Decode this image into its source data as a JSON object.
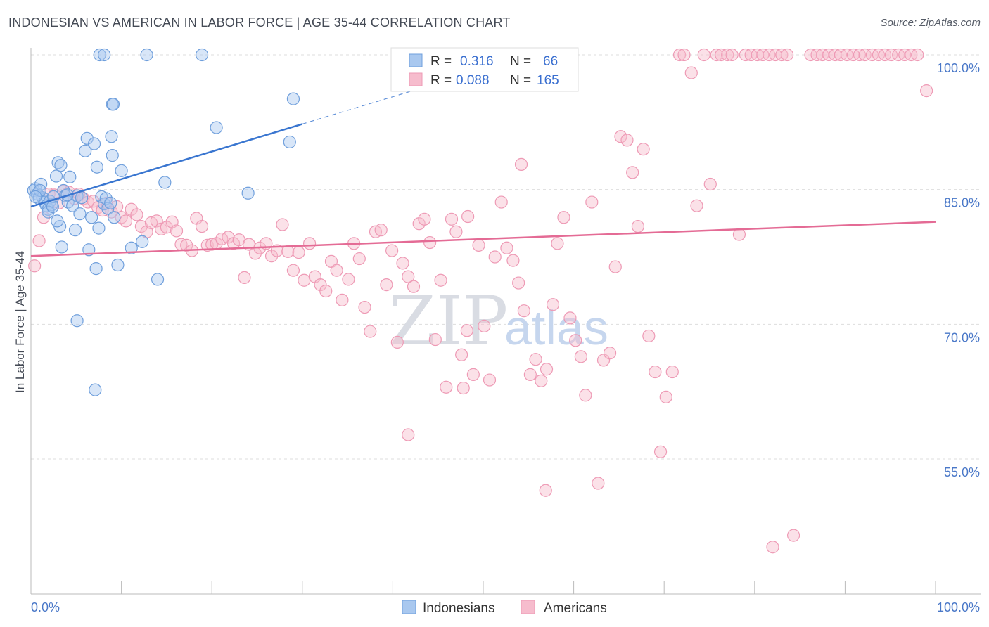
{
  "title": "INDONESIAN VS AMERICAN IN LABOR FORCE | AGE 35-44 CORRELATION CHART",
  "source": "Source: ZipAtlas.com",
  "watermark": {
    "zip": "ZIP",
    "atlas": "atlas"
  },
  "legend": {
    "r_label": "R =",
    "n_label": "N =",
    "entries": [
      {
        "r": "0.316",
        "n": "66"
      },
      {
        "r": "0.088",
        "n": "165"
      }
    ]
  },
  "colors": {
    "indonesians_fill": "#a9c8ef",
    "indonesians_stroke": "#6f9fdc",
    "indonesians_line": "#3a76d0",
    "americans_fill": "#f6bccd",
    "americans_stroke": "#ee9ab5",
    "americans_line": "#e46b95",
    "tick_label": "#4a78c8",
    "grid": "#dddddd"
  },
  "chart_data": {
    "type": "scatter",
    "title": "INDONESIAN VS AMERICAN IN LABOR FORCE | AGE 35-44 CORRELATION CHART",
    "xlabel": "",
    "ylabel": "In Labor Force | Age 35-44",
    "xlim": [
      0,
      100
    ],
    "ylim": [
      40,
      100
    ],
    "x_tick_labels": [
      "0.0%",
      "100.0%"
    ],
    "y_tick_labels": [
      "100.0%",
      "85.0%",
      "70.0%",
      "55.0%"
    ],
    "y_ticks": [
      100,
      85,
      70,
      55
    ],
    "grid": true,
    "legend_position": "top-center",
    "series": [
      {
        "name": "Indonesians",
        "r": 0.316,
        "n": 66,
        "trend": {
          "x": [
            0,
            30
          ],
          "y": [
            83.1,
            92.3
          ],
          "dashed_to": [
            44.5,
            96.7
          ]
        },
        "points": [
          [
            0.3,
            84.9
          ],
          [
            0.5,
            85.1
          ],
          [
            0.7,
            84.5
          ],
          [
            0.9,
            84.0
          ],
          [
            1.1,
            85.6
          ],
          [
            1.3,
            84.1
          ],
          [
            1.5,
            83.6
          ],
          [
            1.7,
            83.2
          ],
          [
            1.9,
            82.8
          ],
          [
            2.1,
            83.7
          ],
          [
            2.3,
            83.3
          ],
          [
            2.5,
            84.2
          ],
          [
            2.8,
            86.5
          ],
          [
            3.0,
            88.0
          ],
          [
            3.2,
            80.9
          ],
          [
            3.4,
            78.6
          ],
          [
            3.6,
            84.9
          ],
          [
            3.8,
            84.3
          ],
          [
            4.1,
            83.6
          ],
          [
            4.3,
            86.4
          ],
          [
            4.6,
            83.2
          ],
          [
            4.9,
            80.5
          ],
          [
            5.1,
            84.3
          ],
          [
            5.4,
            82.3
          ],
          [
            5.6,
            84.1
          ],
          [
            6.0,
            89.3
          ],
          [
            6.2,
            90.7
          ],
          [
            6.4,
            78.3
          ],
          [
            6.7,
            81.9
          ],
          [
            7.0,
            90.1
          ],
          [
            7.3,
            87.5
          ],
          [
            7.5,
            80.7
          ],
          [
            7.8,
            84.2
          ],
          [
            8.1,
            83.4
          ],
          [
            8.3,
            84.0
          ],
          [
            8.5,
            82.9
          ],
          [
            8.8,
            83.5
          ],
          [
            9.2,
            81.9
          ],
          [
            9.6,
            76.6
          ],
          [
            7.2,
            76.2
          ],
          [
            5.1,
            70.4
          ],
          [
            7.1,
            62.7
          ],
          [
            7.6,
            100.0
          ],
          [
            8.1,
            100.0
          ],
          [
            12.8,
            100.0
          ],
          [
            18.9,
            100.0
          ],
          [
            9.0,
            94.5
          ],
          [
            9.1,
            94.5
          ],
          [
            8.9,
            90.9
          ],
          [
            9.0,
            88.8
          ],
          [
            10.0,
            87.1
          ],
          [
            11.1,
            78.5
          ],
          [
            12.3,
            79.2
          ],
          [
            14.0,
            75.0
          ],
          [
            14.8,
            85.8
          ],
          [
            20.5,
            91.9
          ],
          [
            24.0,
            84.6
          ],
          [
            28.6,
            90.3
          ],
          [
            29.0,
            95.1
          ],
          [
            2.9,
            81.5
          ],
          [
            1.9,
            82.5
          ],
          [
            4.0,
            84.4
          ],
          [
            2.4,
            83.1
          ],
          [
            1.0,
            84.9
          ],
          [
            0.5,
            84.2
          ],
          [
            3.3,
            87.7
          ]
        ]
      },
      {
        "name": "Americans",
        "r": 0.088,
        "n": 165,
        "trend": {
          "x": [
            0,
            100
          ],
          "y": [
            77.6,
            81.4
          ]
        },
        "points": [
          [
            0.4,
            76.5
          ],
          [
            0.9,
            79.3
          ],
          [
            1.4,
            81.9
          ],
          [
            2.0,
            84.5
          ],
          [
            2.6,
            84.4
          ],
          [
            3.1,
            83.5
          ],
          [
            3.6,
            84.8
          ],
          [
            4.2,
            84.7
          ],
          [
            4.8,
            84.0
          ],
          [
            5.3,
            84.5
          ],
          [
            5.8,
            84.0
          ],
          [
            6.3,
            83.6
          ],
          [
            6.9,
            83.7
          ],
          [
            7.4,
            83.0
          ],
          [
            7.9,
            82.7
          ],
          [
            8.4,
            83.5
          ],
          [
            8.9,
            82.5
          ],
          [
            9.5,
            83.1
          ],
          [
            10.0,
            81.9
          ],
          [
            10.5,
            81.5
          ],
          [
            11.1,
            82.8
          ],
          [
            11.7,
            82.2
          ],
          [
            12.2,
            80.9
          ],
          [
            12.8,
            80.3
          ],
          [
            13.3,
            81.3
          ],
          [
            13.9,
            81.5
          ],
          [
            14.4,
            80.6
          ],
          [
            15.0,
            80.8
          ],
          [
            15.6,
            81.4
          ],
          [
            16.1,
            80.4
          ],
          [
            16.6,
            78.9
          ],
          [
            17.2,
            78.8
          ],
          [
            17.8,
            78.2
          ],
          [
            18.3,
            81.8
          ],
          [
            18.9,
            80.9
          ],
          [
            19.5,
            78.8
          ],
          [
            20.0,
            78.9
          ],
          [
            20.5,
            79.0
          ],
          [
            21.1,
            79.5
          ],
          [
            21.8,
            79.7
          ],
          [
            22.4,
            79.0
          ],
          [
            23.0,
            79.4
          ],
          [
            23.6,
            75.2
          ],
          [
            24.1,
            78.9
          ],
          [
            24.8,
            77.9
          ],
          [
            25.3,
            78.5
          ],
          [
            26.0,
            79.0
          ],
          [
            26.6,
            77.6
          ],
          [
            27.2,
            78.2
          ],
          [
            27.8,
            81.1
          ],
          [
            28.4,
            78.1
          ],
          [
            29.0,
            76.0
          ],
          [
            29.6,
            78.0
          ],
          [
            30.2,
            74.9
          ],
          [
            30.8,
            79.0
          ],
          [
            31.4,
            75.3
          ],
          [
            32.0,
            74.4
          ],
          [
            32.6,
            73.7
          ],
          [
            33.2,
            77.0
          ],
          [
            33.8,
            76.0
          ],
          [
            34.4,
            72.7
          ],
          [
            35.1,
            75.0
          ],
          [
            35.7,
            79.0
          ],
          [
            36.3,
            77.3
          ],
          [
            36.9,
            71.9
          ],
          [
            37.5,
            69.2
          ],
          [
            38.1,
            80.3
          ],
          [
            38.7,
            80.5
          ],
          [
            39.3,
            74.4
          ],
          [
            39.9,
            78.2
          ],
          [
            40.5,
            68.0
          ],
          [
            41.1,
            76.8
          ],
          [
            41.7,
            75.3
          ],
          [
            42.3,
            74.2
          ],
          [
            42.9,
            81.2
          ],
          [
            43.5,
            81.7
          ],
          [
            44.1,
            79.1
          ],
          [
            44.7,
            68.3
          ],
          [
            45.3,
            74.9
          ],
          [
            45.9,
            63.0
          ],
          [
            46.5,
            81.7
          ],
          [
            47.0,
            80.3
          ],
          [
            47.6,
            66.6
          ],
          [
            48.2,
            69.3
          ],
          [
            48.9,
            64.4
          ],
          [
            49.5,
            78.8
          ],
          [
            50.1,
            69.8
          ],
          [
            50.7,
            63.8
          ],
          [
            51.3,
            77.5
          ],
          [
            52.0,
            83.6
          ],
          [
            52.6,
            78.5
          ],
          [
            53.3,
            77.1
          ],
          [
            53.9,
            74.6
          ],
          [
            54.5,
            71.5
          ],
          [
            55.2,
            64.4
          ],
          [
            55.8,
            66.1
          ],
          [
            56.4,
            63.7
          ],
          [
            57.0,
            65.0
          ],
          [
            57.7,
            72.2
          ],
          [
            58.2,
            79.0
          ],
          [
            58.9,
            81.9
          ],
          [
            59.6,
            70.7
          ],
          [
            60.2,
            68.2
          ],
          [
            60.8,
            66.4
          ],
          [
            61.3,
            62.1
          ],
          [
            62.0,
            83.6
          ],
          [
            62.7,
            52.3
          ],
          [
            63.3,
            66.0
          ],
          [
            64.0,
            66.8
          ],
          [
            64.6,
            76.4
          ],
          [
            65.2,
            90.9
          ],
          [
            65.9,
            90.5
          ],
          [
            66.5,
            86.9
          ],
          [
            67.1,
            80.9
          ],
          [
            67.7,
            89.5
          ],
          [
            68.3,
            68.7
          ],
          [
            69.0,
            64.7
          ],
          [
            69.6,
            55.8
          ],
          [
            70.2,
            61.9
          ],
          [
            70.9,
            64.7
          ],
          [
            71.7,
            100.0
          ],
          [
            72.2,
            100.0
          ],
          [
            73.0,
            98.0
          ],
          [
            73.6,
            83.2
          ],
          [
            74.4,
            100.0
          ],
          [
            75.1,
            85.6
          ],
          [
            75.8,
            100.0
          ],
          [
            76.3,
            100.0
          ],
          [
            77.0,
            100.0
          ],
          [
            77.5,
            100.0
          ],
          [
            78.3,
            80.0
          ],
          [
            79.0,
            100.0
          ],
          [
            79.6,
            100.0
          ],
          [
            80.3,
            100.0
          ],
          [
            80.9,
            100.0
          ],
          [
            81.6,
            100.0
          ],
          [
            82.3,
            100.0
          ],
          [
            83.0,
            100.0
          ],
          [
            83.6,
            100.0
          ],
          [
            84.3,
            46.5
          ],
          [
            86.2,
            100.0
          ],
          [
            86.9,
            100.0
          ],
          [
            87.5,
            100.0
          ],
          [
            88.2,
            100.0
          ],
          [
            88.9,
            100.0
          ],
          [
            89.5,
            100.0
          ],
          [
            90.2,
            100.0
          ],
          [
            90.9,
            100.0
          ],
          [
            91.6,
            100.0
          ],
          [
            92.2,
            100.0
          ],
          [
            93.0,
            100.0
          ],
          [
            93.7,
            100.0
          ],
          [
            94.4,
            100.0
          ],
          [
            95.1,
            100.0
          ],
          [
            95.9,
            100.0
          ],
          [
            96.6,
            100.0
          ],
          [
            97.3,
            100.0
          ],
          [
            98.0,
            100.0
          ],
          [
            99.0,
            96.0
          ],
          [
            82.0,
            45.2
          ],
          [
            56.9,
            51.5
          ],
          [
            41.7,
            57.7
          ],
          [
            47.8,
            62.9
          ],
          [
            48.3,
            82.0
          ],
          [
            54.2,
            87.8
          ]
        ]
      }
    ]
  }
}
